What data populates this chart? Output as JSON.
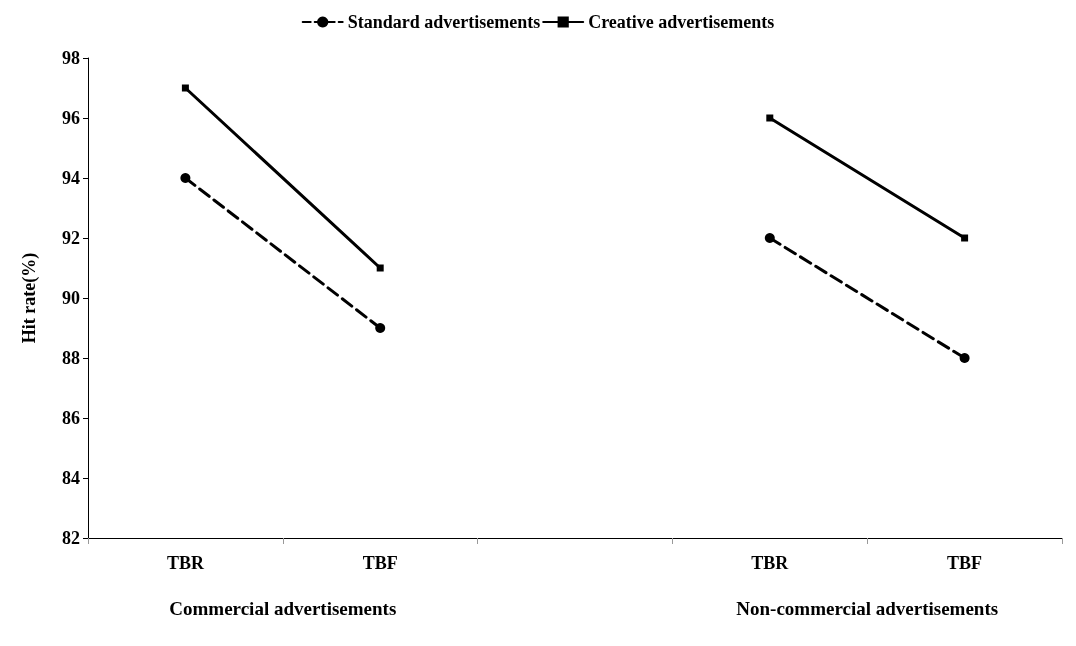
{
  "chart_data": {
    "type": "line",
    "ylabel": "Hit rate(%)",
    "categories": [
      "TBR",
      "TBF",
      null,
      "TBR",
      "TBF"
    ],
    "series": [
      {
        "name": "Standard advertisements",
        "color": "#000000",
        "values": [
          94,
          89,
          null,
          92,
          88
        ],
        "marker": "circle",
        "line_style": "dashed"
      },
      {
        "name": "Creative advertisements",
        "color": "#000000",
        "values": [
          97,
          91,
          null,
          96,
          92
        ],
        "marker": "square",
        "line_style": "solid"
      }
    ],
    "ylim": [
      82,
      98
    ],
    "yticks": [
      82,
      84,
      86,
      88,
      90,
      92,
      94,
      96,
      98
    ],
    "grid": false,
    "legend": "top",
    "annotations": [
      "Commercial advertisements",
      "Non-commercial advertisements"
    ]
  }
}
